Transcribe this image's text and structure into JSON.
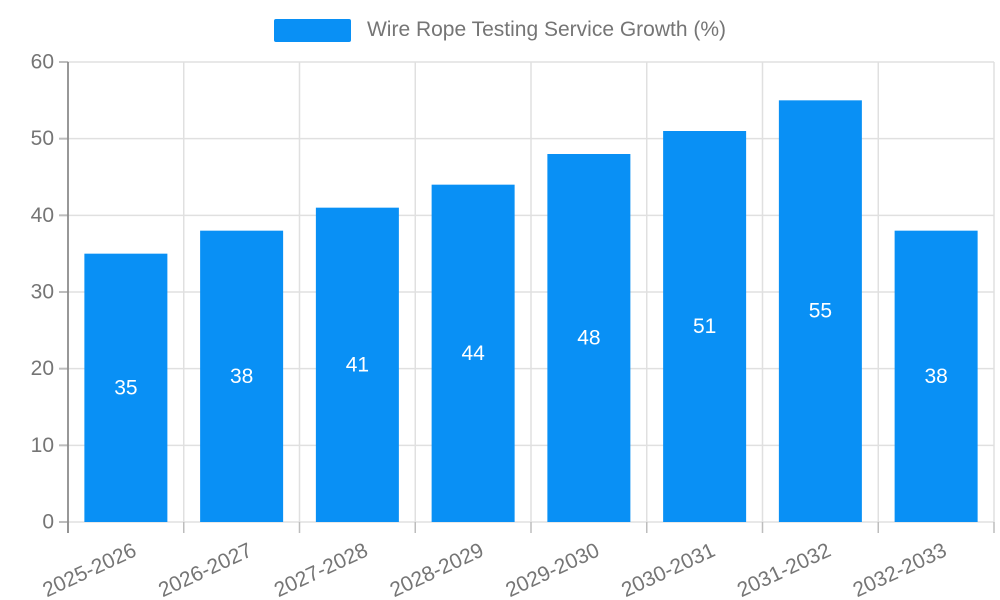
{
  "legend": {
    "label": "Wire Rope Testing Service Growth (%)",
    "swatch_color": "#0990f5"
  },
  "chart_data": {
    "type": "bar",
    "title": "Wire Rope Testing Service Growth (%)",
    "categories": [
      "2025-2026",
      "2026-2027",
      "2027-2028",
      "2028-2029",
      "2029-2030",
      "2030-2031",
      "2031-2032",
      "2032-2033"
    ],
    "values": [
      35,
      38,
      41,
      44,
      48,
      51,
      55,
      38
    ],
    "xlabel": "",
    "ylabel": "",
    "ylim": [
      0,
      60
    ],
    "yticks": [
      0,
      10,
      20,
      30,
      40,
      50,
      60
    ],
    "grid": true,
    "legend_position": "top",
    "x_label_rotation_deg": -25,
    "colors": {
      "bar": "#0990f5",
      "value_label": "#ffffff",
      "axis_text": "#757575",
      "gridline": "#e0e0e0",
      "axis_line": "#8c8c8c",
      "tick": "#bdbdbd"
    }
  }
}
